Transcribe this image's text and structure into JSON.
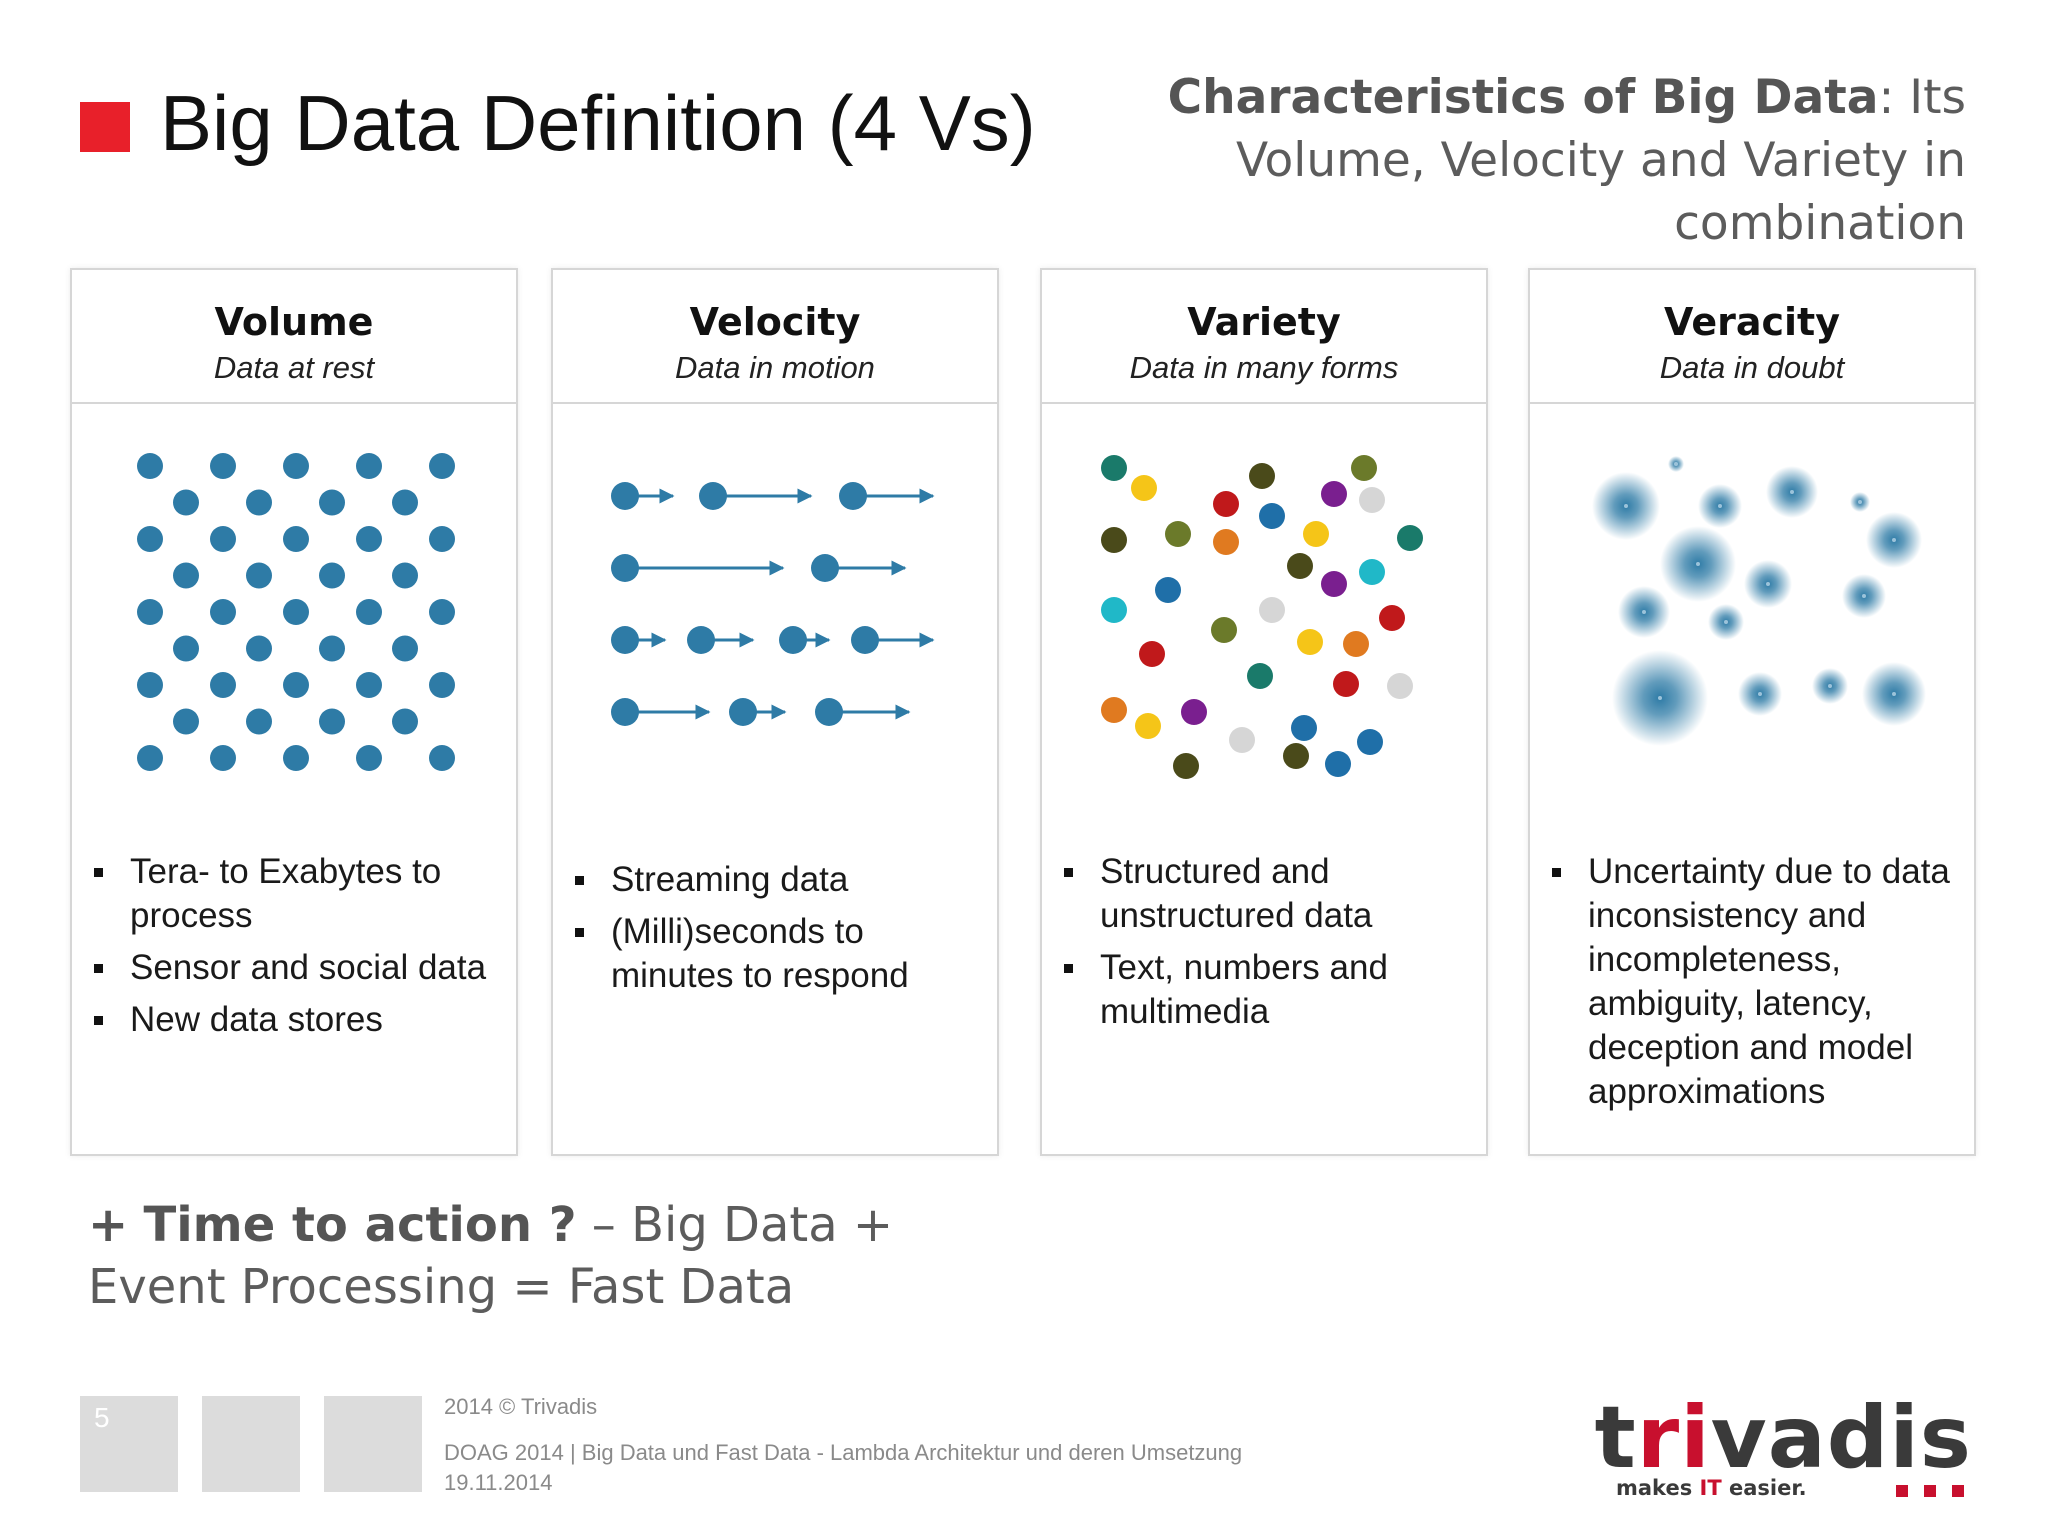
{
  "header": {
    "title": "Big Data Definition (4 Vs)",
    "subtitle_bold": "Characteristics of Big Data",
    "subtitle_rest": ": Its Volume, Velocity and Variety in combination",
    "accent_color": "#e8202a"
  },
  "panels": [
    {
      "title": "Volume",
      "subtitle": "Data at rest",
      "graphic": "dot-grid",
      "bullets": [
        "Tera- to Exabytes to process",
        "Sensor and social data",
        "New data stores"
      ]
    },
    {
      "title": "Velocity",
      "subtitle": "Data in motion",
      "graphic": "moving-dots-arrows",
      "bullets": [
        "Streaming data",
        "(Milli)seconds to minutes to respond"
      ]
    },
    {
      "title": "Variety",
      "subtitle": "Data in many forms",
      "graphic": "multicolor-dots",
      "bullets": [
        "Structured and unstructured data",
        "Text, numbers and multimedia"
      ]
    },
    {
      "title": "Veracity",
      "subtitle": "Data in doubt",
      "graphic": "blurred-dots",
      "bullets": [
        "Uncertainty due to data inconsistency and incompleteness, ambiguity, latency, deception and model approximations"
      ]
    }
  ],
  "bottom": {
    "plus": "+",
    "bold": "Time to action ?",
    "rest": " – Big Data + Event Processing = Fast Data"
  },
  "footer": {
    "slide_number": "5",
    "copyright": "2014 © Trivadis",
    "event_line": "DOAG 2014 | Big Data und Fast Data - Lambda Architektur und deren Umsetzung",
    "date": "19.11.2014"
  },
  "logo": {
    "word_prefix": "t",
    "word_red": "ri",
    "word_rest": "vadis",
    "tag_pre": "makes ",
    "tag_it": "IT",
    "tag_post": " easier."
  },
  "colors": {
    "dot_blue": "#2e7ba6",
    "variety_palette": [
      "#1a7a6a",
      "#f5c518",
      "#c0191b",
      "#4a4a1a",
      "#7a1f8f",
      "#d6d6d6",
      "#e07a20",
      "#1f6fa8",
      "#20b8c8",
      "#6b7a2a"
    ]
  }
}
